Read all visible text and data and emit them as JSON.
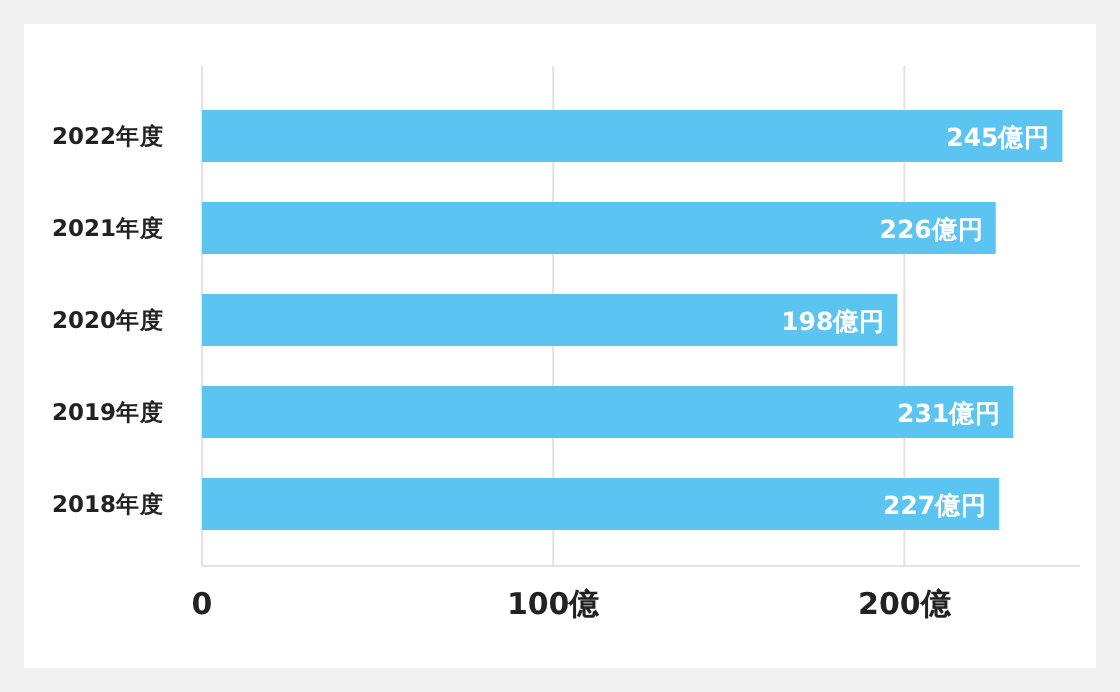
{
  "chart_data": {
    "type": "bar",
    "orientation": "horizontal",
    "categories": [
      "2022年度",
      "2021年度",
      "2020年度",
      "2019年度",
      "2018年度"
    ],
    "values": [
      245,
      226,
      198,
      231,
      227
    ],
    "value_labels": [
      "245億円",
      "226億円",
      "198億円",
      "231億円",
      "227億円"
    ],
    "color": "#5bc4f0",
    "xlim": [
      0,
      250
    ],
    "xticks": [
      0,
      {
        "value": 100,
        "label": "100億"
      },
      {
        "value": 200,
        "label": "200億"
      }
    ],
    "grid": "x"
  }
}
